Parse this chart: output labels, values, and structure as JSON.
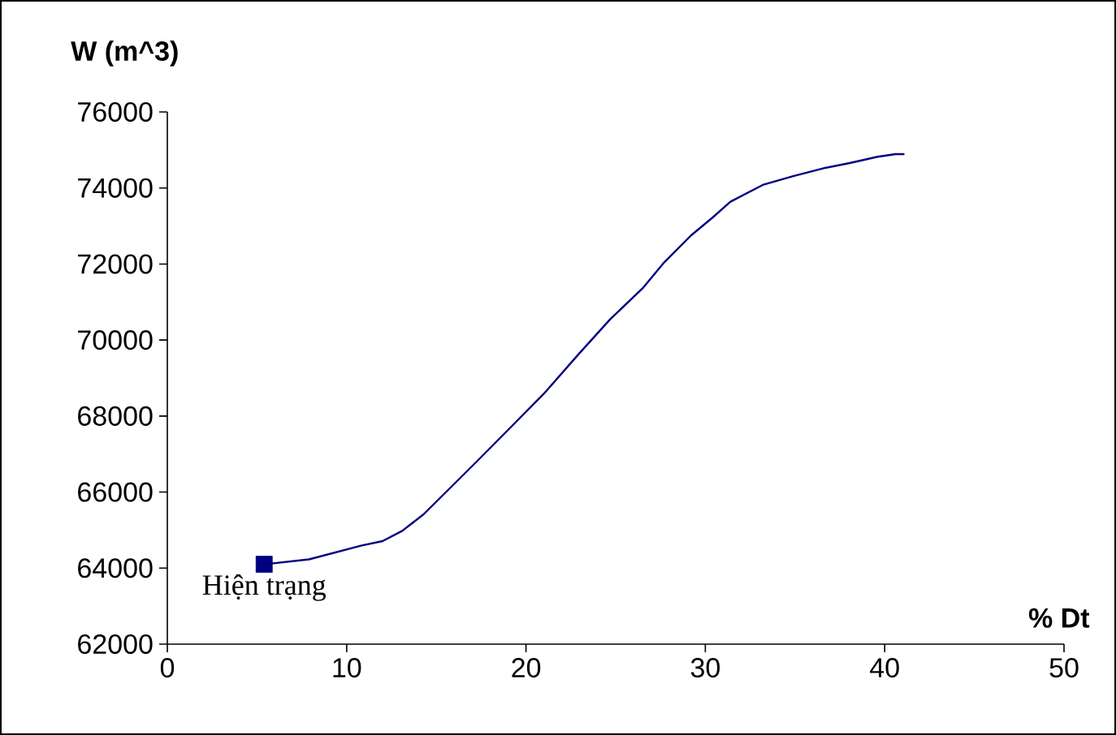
{
  "chart_data": {
    "type": "line",
    "xlabel": "% Dt",
    "ylabel": "W (m^3)",
    "xlim": [
      0,
      50
    ],
    "ylim": [
      62000,
      76000
    ],
    "xticks": [
      0,
      10,
      20,
      30,
      40,
      50
    ],
    "yticks": [
      62000,
      64000,
      66000,
      68000,
      70000,
      72000,
      74000,
      76000
    ],
    "grid": false,
    "series": [
      {
        "color": "#000080",
        "marker": "none",
        "line_style": "solid",
        "x": [
          5.4,
          7.9,
          10.8,
          12.0,
          13.1,
          14.3,
          17.2,
          19.2,
          21.0,
          22.9,
          24.7,
          26.5,
          27.7,
          29.2,
          30.4,
          31.4,
          33.2,
          34.9,
          36.6,
          38.1,
          39.6,
          40.6,
          41.1
        ],
        "values": [
          64100,
          64230,
          64590,
          64710,
          64980,
          65420,
          66780,
          67730,
          68590,
          69610,
          70550,
          71360,
          72040,
          72750,
          73220,
          73640,
          74080,
          74310,
          74520,
          74660,
          74820,
          74890,
          74890
        ]
      },
      {
        "type": "scatter",
        "color": "#000080",
        "marker": "square",
        "x": [
          5.4
        ],
        "values": [
          64100
        ]
      }
    ],
    "annotations": [
      {
        "text": "Hiện trạng",
        "x": 5.4,
        "y": 64100
      }
    ]
  }
}
